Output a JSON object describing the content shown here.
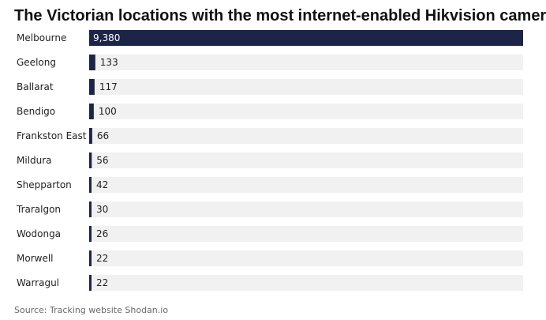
{
  "chart_data": {
    "type": "bar",
    "orientation": "horizontal",
    "title": "The Victorian locations with the most internet-enabled Hikvision cameras",
    "categories": [
      "Melbourne",
      "Geelong",
      "Ballarat",
      "Bendigo",
      "Frankston East",
      "Mildura",
      "Shepparton",
      "Traralgon",
      "Wodonga",
      "Morwell",
      "Warragul"
    ],
    "values": [
      9380,
      133,
      117,
      100,
      66,
      56,
      42,
      30,
      26,
      22,
      22
    ],
    "value_labels": [
      "9,380",
      "133",
      "117",
      "100",
      "66",
      "56",
      "42",
      "30",
      "26",
      "22",
      "22"
    ],
    "xlim": [
      0,
      9380
    ],
    "grid": false,
    "legend": "none",
    "source": "Source: Tracking website Shodan.io"
  },
  "colors": {
    "bar": "#1c2447",
    "track": "#f1f1f1",
    "title": "#111111",
    "label": "#222222",
    "value_inside": "#ffffff",
    "value_outside": "#222222",
    "source": "#6a6a6a"
  }
}
